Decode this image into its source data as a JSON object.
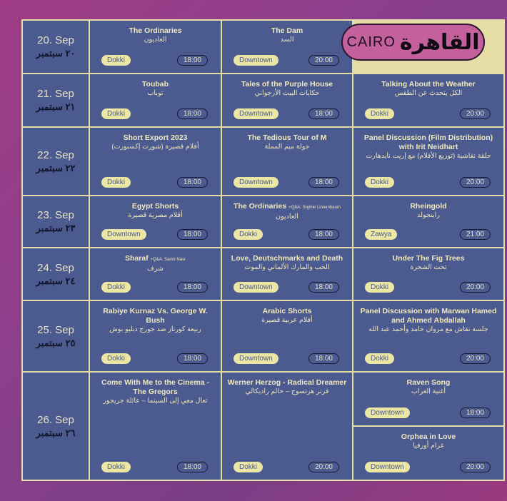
{
  "badge": {
    "en": "CAIRO",
    "ar": "القاهرة"
  },
  "colors": {
    "background": "#8a3f8c",
    "cell": "#4b5a8f",
    "line": "#e6dca6",
    "venue_pill": "#ece6a4",
    "badge": "#c4609c"
  },
  "rows": [
    {
      "date_en": "20. Sep",
      "date_ar": "٢٠ سبتمبر",
      "events": [
        {
          "title": "The Ordinaries",
          "ar": "العاديون",
          "venue": "Dokki",
          "time": "18:00"
        },
        {
          "title": "The Dam",
          "ar": "السد",
          "venue": "Downtown",
          "time": "20:00"
        },
        null
      ]
    },
    {
      "date_en": "21. Sep",
      "date_ar": "٢١ سبتمبر",
      "events": [
        {
          "title": "Toubab",
          "ar": "توباب",
          "venue": "Dokki",
          "time": "18:00"
        },
        {
          "title": "Tales of the Purple House",
          "ar": "حكايات البيت الأرجواني",
          "venue": "Downtown",
          "time": "18:00"
        },
        {
          "title": "Talking About the Weather",
          "ar": "الكل يتحدث عن الطقس",
          "venue": "Dokki",
          "time": "20:00"
        }
      ]
    },
    {
      "date_en": "22. Sep",
      "date_ar": "٢٢ سبتمبر",
      "events": [
        {
          "title": "Short Export 2023",
          "ar": "أفلام قصيرة (شورت إكسبورت)",
          "venue": "Dokki",
          "time": "18:00"
        },
        {
          "title": "The Tedious Tour of M",
          "ar": "جولة ميم المملة",
          "venue": "Downtown",
          "time": "18:00"
        },
        {
          "title": "Panel Discussion (Film Distribution) with Irit Neidhart",
          "ar": "حلقة نقاشية (توزيع الأفلام) مع إريت نايدهارت",
          "venue": "Dokki",
          "time": "20:00"
        }
      ]
    },
    {
      "date_en": "23. Sep",
      "date_ar": "٢٣ سبتمبر",
      "events": [
        {
          "title": "Egypt Shorts",
          "ar": "أفلام مصرية قصيرة",
          "venue": "Downtown",
          "time": "18:00"
        },
        {
          "title": "The Ordinaries",
          "qa": "+Q&A: Sophie Linnenbaum",
          "ar": "العاديون",
          "venue": "Dokki",
          "time": "18:00"
        },
        {
          "title": "Rheingold",
          "ar": "راينجولد",
          "venue": "Zawya",
          "time": "21:00"
        }
      ]
    },
    {
      "date_en": "24. Sep",
      "date_ar": "٢٤ سبتمبر",
      "events": [
        {
          "title": "Sharaf",
          "qa": "+Q&A: Samir Nasr",
          "ar": "شرف",
          "venue": "Dokki",
          "time": "18:00"
        },
        {
          "title": "Love, Deutschmarks and Death",
          "ar": "الحب والمارك الألماني والموت",
          "venue": "Downtown",
          "time": "18:00"
        },
        {
          "title": "Under The Fig Trees",
          "ar": "تحت الشجرة",
          "venue": "Dokki",
          "time": "20:00"
        }
      ]
    },
    {
      "date_en": "25. Sep",
      "date_ar": "٢٥ سبتمبر",
      "events": [
        {
          "title": "Rabiye Kurnaz Vs. George W. Bush",
          "ar": "ربيعة كورناز ضد جورج دبليو بوش",
          "venue": "Dokki",
          "time": "18:00"
        },
        {
          "title": "Arabic Shorts",
          "ar": "أفلام عربية قصيرة",
          "venue": "Downtown",
          "time": "18:00"
        },
        {
          "title": "Panel Discussion with Marwan Hamed and Ahmed Abdallah",
          "ar": "جلسة نقاش مع مروان حامد وأحمد عبد الله",
          "venue": "Dokki",
          "time": "20:00"
        }
      ]
    },
    {
      "date_en": "26. Sep",
      "date_ar": "٢٦ سبتمبر",
      "events": [
        {
          "title": "Come With Me to the Cinema - The Gregors",
          "ar": "تعال معي إلى السينما – عائلة جريجور",
          "venue": "Dokki",
          "time": "18:00"
        },
        {
          "title": "Werner Herzog - Radical Dreamer",
          "ar": "فرنر هرتسوج – حالم راديكالي",
          "venue": "Dokki",
          "time": "20:00"
        },
        [
          {
            "title": "Raven Song",
            "ar": "أغنية الغراب",
            "venue": "Downtown",
            "time": "18:00"
          },
          {
            "title": "Orphea in Love",
            "ar": "غرام أورفيا",
            "venue": "Downtown",
            "time": "20:00"
          }
        ]
      ]
    }
  ]
}
